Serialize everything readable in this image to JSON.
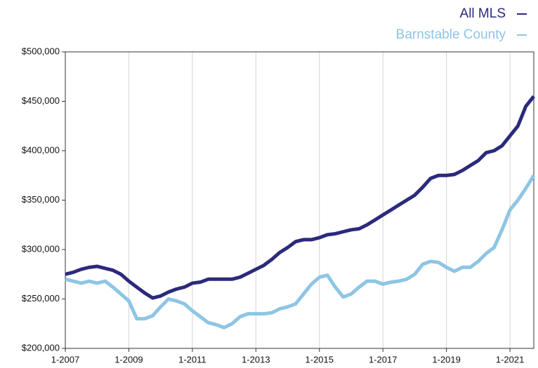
{
  "chart_data": {
    "type": "line",
    "x": [
      2007,
      2007.25,
      2007.5,
      2007.75,
      2008,
      2008.25,
      2008.5,
      2008.75,
      2009,
      2009.25,
      2009.5,
      2009.75,
      2010,
      2010.25,
      2010.5,
      2010.75,
      2011,
      2011.25,
      2011.5,
      2011.75,
      2012,
      2012.25,
      2012.5,
      2012.75,
      2013,
      2013.25,
      2013.5,
      2013.75,
      2014,
      2014.25,
      2014.5,
      2014.75,
      2015,
      2015.25,
      2015.5,
      2015.75,
      2016,
      2016.25,
      2016.5,
      2016.75,
      2017,
      2017.25,
      2017.5,
      2017.75,
      2018,
      2018.25,
      2018.5,
      2018.75,
      2019,
      2019.25,
      2019.5,
      2019.75,
      2020,
      2020.25,
      2020.5,
      2020.75,
      2021,
      2021.25,
      2021.5,
      2021.75
    ],
    "series": [
      {
        "name": "All MLS",
        "color": "#2b2a7c",
        "values": [
          275000,
          277000,
          280000,
          282000,
          283000,
          281000,
          279000,
          275000,
          268000,
          262000,
          256000,
          251000,
          253000,
          257000,
          260000,
          262000,
          266000,
          267000,
          270000,
          270000,
          270000,
          270000,
          272000,
          276000,
          280000,
          284000,
          290000,
          297000,
          302000,
          308000,
          310000,
          310000,
          312000,
          315000,
          316000,
          318000,
          320000,
          321000,
          325000,
          330000,
          335000,
          340000,
          345000,
          350000,
          355000,
          363000,
          372000,
          375000,
          375000,
          376000,
          380000,
          385000,
          390000,
          398000,
          400000,
          405000,
          415000,
          425000,
          445000,
          455000
        ]
      },
      {
        "name": "Barnstable County",
        "color": "#8ec5e4",
        "values": [
          270000,
          268000,
          266000,
          268000,
          266000,
          268000,
          262000,
          255000,
          248000,
          230000,
          230000,
          233000,
          242000,
          250000,
          248000,
          245000,
          238000,
          232000,
          226000,
          224000,
          221000,
          225000,
          232000,
          235000,
          235000,
          235000,
          236000,
          240000,
          242000,
          245000,
          255000,
          265000,
          272000,
          274000,
          262000,
          252000,
          255000,
          262000,
          268000,
          268000,
          265000,
          267000,
          268000,
          270000,
          275000,
          285000,
          288000,
          287000,
          282000,
          278000,
          282000,
          282000,
          288000,
          296000,
          302000,
          320000,
          340000,
          350000,
          362000,
          375000
        ]
      }
    ],
    "xlim": [
      2007,
      2021.75
    ],
    "xticks": [
      {
        "value": 2007,
        "label": "1-2007"
      },
      {
        "value": 2009,
        "label": "1-2009"
      },
      {
        "value": 2011,
        "label": "1-2011"
      },
      {
        "value": 2013,
        "label": "1-2013"
      },
      {
        "value": 2015,
        "label": "1-2015"
      },
      {
        "value": 2017,
        "label": "1-2017"
      },
      {
        "value": 2019,
        "label": "1-2019"
      },
      {
        "value": 2021,
        "label": "1-2021"
      }
    ],
    "ylim": [
      200000,
      500000
    ],
    "yticks": [
      {
        "value": 200000,
        "label": "$200,000"
      },
      {
        "value": 250000,
        "label": "$250,000"
      },
      {
        "value": 300000,
        "label": "$300,000"
      },
      {
        "value": 350000,
        "label": "$350,000"
      },
      {
        "value": 400000,
        "label": "$400,000"
      },
      {
        "value": 450000,
        "label": "$450,000"
      },
      {
        "value": 500000,
        "label": "$500,000"
      }
    ],
    "grid": true,
    "legend": "top-right"
  }
}
